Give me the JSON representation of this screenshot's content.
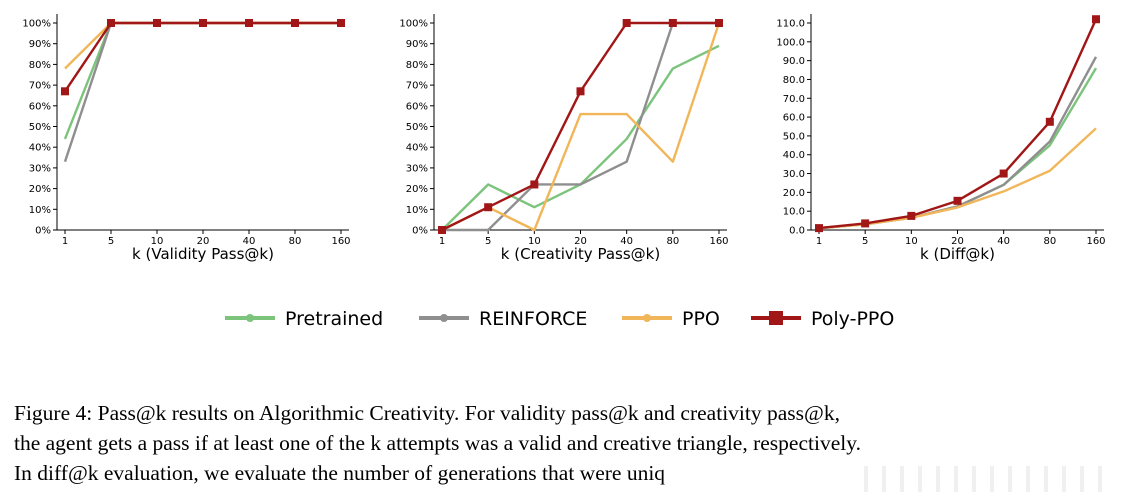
{
  "colors": {
    "Pretrained": "#7cc47c",
    "REINFORCE": "#8f8f8f",
    "PPO": "#f2b65a",
    "Poly-PPO": "#a11616"
  },
  "legend": [
    {
      "name": "Pretrained",
      "marker": "circle"
    },
    {
      "name": "REINFORCE",
      "marker": "circle"
    },
    {
      "name": "PPO",
      "marker": "circle"
    },
    {
      "name": "Poly-PPO",
      "marker": "square"
    }
  ],
  "chart_data": [
    {
      "type": "line",
      "xlabel": "k (Validity Pass@k)",
      "ylabel": "",
      "categories": [
        "1",
        "5",
        "10",
        "20",
        "40",
        "80",
        "160"
      ],
      "ylim": [
        0,
        100
      ],
      "yticks": [
        "0%",
        "10%",
        "20%",
        "30%",
        "40%",
        "50%",
        "60%",
        "70%",
        "80%",
        "90%",
        "100%"
      ],
      "ytick_values": [
        0,
        10,
        20,
        30,
        40,
        50,
        60,
        70,
        80,
        90,
        100
      ],
      "series": [
        {
          "name": "Pretrained",
          "values": [
            44,
            100,
            100,
            100,
            100,
            100,
            100
          ]
        },
        {
          "name": "REINFORCE",
          "values": [
            33,
            100,
            100,
            100,
            100,
            100,
            100
          ]
        },
        {
          "name": "PPO",
          "values": [
            78,
            100,
            100,
            100,
            100,
            100,
            100
          ]
        },
        {
          "name": "Poly-PPO",
          "values": [
            67,
            100,
            100,
            100,
            100,
            100,
            100
          ]
        }
      ]
    },
    {
      "type": "line",
      "xlabel": "k (Creativity Pass@k)",
      "ylabel": "",
      "categories": [
        "1",
        "5",
        "10",
        "20",
        "40",
        "80",
        "160"
      ],
      "ylim": [
        0,
        100
      ],
      "yticks": [
        "0%",
        "10%",
        "20%",
        "30%",
        "40%",
        "50%",
        "60%",
        "70%",
        "80%",
        "90%",
        "100%"
      ],
      "ytick_values": [
        0,
        10,
        20,
        30,
        40,
        50,
        60,
        70,
        80,
        90,
        100
      ],
      "series": [
        {
          "name": "Pretrained",
          "values": [
            0,
            22,
            11,
            22,
            44,
            78,
            89
          ]
        },
        {
          "name": "REINFORCE",
          "values": [
            0,
            0,
            22,
            22,
            33,
            100,
            100
          ]
        },
        {
          "name": "PPO",
          "values": [
            0,
            11,
            0,
            56,
            56,
            33,
            100
          ]
        },
        {
          "name": "Poly-PPO",
          "values": [
            0,
            11,
            22,
            67,
            100,
            100,
            100
          ]
        }
      ]
    },
    {
      "type": "line",
      "xlabel": "k (Diff@k)",
      "ylabel": "",
      "categories": [
        "1",
        "5",
        "10",
        "20",
        "40",
        "80",
        "160"
      ],
      "ylim": [
        0,
        110
      ],
      "yticks": [
        "0.0",
        "10.0",
        "20.0",
        "30.0",
        "40.0",
        "50.0",
        "60.0",
        "70.0",
        "80.0",
        "90.0",
        "100.0",
        "110.0"
      ],
      "ytick_values": [
        0,
        10,
        20,
        30,
        40,
        50,
        60,
        70,
        80,
        90,
        100,
        110
      ],
      "series": [
        {
          "name": "Pretrained",
          "values": [
            1,
            3,
            6.5,
            12.5,
            24,
            45,
            86
          ]
        },
        {
          "name": "REINFORCE",
          "values": [
            1,
            3,
            6.5,
            12.5,
            24,
            47,
            92
          ]
        },
        {
          "name": "PPO",
          "values": [
            1,
            3,
            6.5,
            12,
            20.5,
            31.5,
            54
          ]
        },
        {
          "name": "Poly-PPO",
          "values": [
            1,
            3.5,
            7.5,
            15.5,
            30,
            57.5,
            112
          ]
        }
      ]
    }
  ],
  "caption": {
    "line1": "Figure 4: Pass@k results on Algorithmic Creativity.  For validity pass@k and creativity pass@k,",
    "line2": "the agent gets a pass if at least one of the k attempts was a valid and creative triangle, respectively.",
    "line3": "In diff@k evaluation, we evaluate the number of generations that were uniq"
  }
}
